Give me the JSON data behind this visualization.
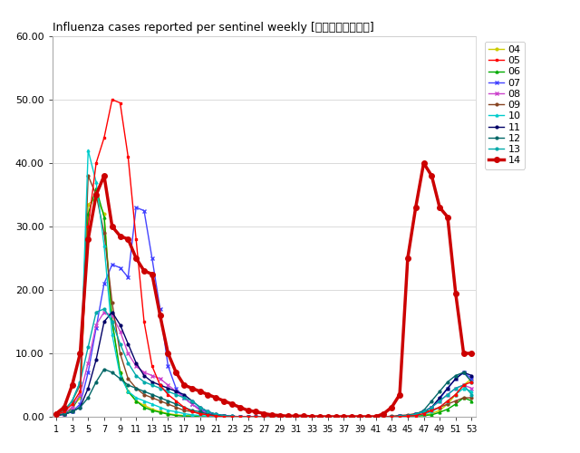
{
  "title": "Influenza cases reported per sentinel weekly [定点当たり報告数]",
  "ylim": [
    0,
    60
  ],
  "yticks": [
    0.0,
    10.0,
    20.0,
    30.0,
    40.0,
    50.0,
    60.0
  ],
  "xlim": [
    1,
    53
  ],
  "xticks": [
    1,
    3,
    5,
    7,
    9,
    11,
    13,
    15,
    17,
    19,
    21,
    23,
    25,
    27,
    29,
    31,
    33,
    35,
    37,
    39,
    41,
    43,
    45,
    47,
    49,
    51,
    53
  ],
  "background_color": "#ffffff",
  "series": {
    "04": {
      "color": "#cccc00",
      "marker": "o",
      "markersize": 2,
      "linewidth": 1.0,
      "zorder": 2,
      "data": [
        0.3,
        0.5,
        1.5,
        3.0,
        33.5,
        34.5,
        32.0,
        15.0,
        7.0,
        4.0,
        2.5,
        1.8,
        1.2,
        0.8,
        0.5,
        0.3,
        0.2,
        0.1,
        0.1,
        0.0,
        0.0,
        0.0,
        0.0,
        0.0,
        0.0,
        0.0,
        0.0,
        0.0,
        0.0,
        0.0,
        0.0,
        0.0,
        0.0,
        0.0,
        0.0,
        0.0,
        0.0,
        0.0,
        0.0,
        0.0,
        0.0,
        0.0,
        0.0,
        0.0,
        0.0,
        0.1,
        0.2,
        0.5,
        1.0,
        2.0,
        3.5,
        5.0,
        6.0
      ]
    },
    "05": {
      "color": "#ff0000",
      "marker": "s",
      "markersize": 2,
      "linewidth": 1.0,
      "zorder": 3,
      "data": [
        0.3,
        0.8,
        2.0,
        4.0,
        30.0,
        40.0,
        44.0,
        50.0,
        49.5,
        41.0,
        28.0,
        15.0,
        8.0,
        5.0,
        3.5,
        2.5,
        1.5,
        0.8,
        0.5,
        0.3,
        0.1,
        0.0,
        0.0,
        0.0,
        0.0,
        0.0,
        0.0,
        0.0,
        0.0,
        0.0,
        0.0,
        0.0,
        0.0,
        0.0,
        0.0,
        0.0,
        0.0,
        0.0,
        0.0,
        0.0,
        0.0,
        0.0,
        0.0,
        0.0,
        0.1,
        0.2,
        0.5,
        1.0,
        1.5,
        2.5,
        3.5,
        5.0,
        5.5
      ]
    },
    "06": {
      "color": "#00aa00",
      "marker": "^",
      "markersize": 2,
      "linewidth": 1.0,
      "zorder": 2,
      "data": [
        0.2,
        0.5,
        1.2,
        3.5,
        32.0,
        36.0,
        31.5,
        15.0,
        7.0,
        4.0,
        2.5,
        1.5,
        1.0,
        0.7,
        0.4,
        0.2,
        0.1,
        0.1,
        0.0,
        0.0,
        0.0,
        0.0,
        0.0,
        0.0,
        0.0,
        0.0,
        0.0,
        0.0,
        0.0,
        0.0,
        0.0,
        0.0,
        0.0,
        0.0,
        0.0,
        0.0,
        0.0,
        0.0,
        0.0,
        0.0,
        0.0,
        0.0,
        0.0,
        0.0,
        0.0,
        0.1,
        0.2,
        0.3,
        0.7,
        1.2,
        2.0,
        3.0,
        2.5
      ]
    },
    "07": {
      "color": "#4444ff",
      "marker": "x",
      "markersize": 3,
      "linewidth": 1.0,
      "zorder": 2,
      "data": [
        0.2,
        0.4,
        0.8,
        2.0,
        7.0,
        14.0,
        21.0,
        24.0,
        23.5,
        22.0,
        33.0,
        32.5,
        25.0,
        17.0,
        8.0,
        4.5,
        3.0,
        2.0,
        1.2,
        0.6,
        0.3,
        0.1,
        0.0,
        0.0,
        0.0,
        0.0,
        0.0,
        0.0,
        0.0,
        0.0,
        0.0,
        0.0,
        0.0,
        0.0,
        0.0,
        0.0,
        0.0,
        0.0,
        0.0,
        0.0,
        0.0,
        0.0,
        0.0,
        0.1,
        0.2,
        0.4,
        0.8,
        1.5,
        2.8,
        4.5,
        6.0,
        7.0,
        6.0
      ]
    },
    "08": {
      "color": "#cc44cc",
      "marker": "x",
      "markersize": 3,
      "linewidth": 1.0,
      "zorder": 2,
      "data": [
        0.2,
        0.5,
        1.5,
        3.5,
        8.5,
        14.5,
        16.5,
        16.0,
        13.5,
        10.0,
        8.0,
        7.0,
        6.5,
        6.0,
        5.0,
        4.0,
        3.0,
        2.0,
        1.0,
        0.5,
        0.2,
        0.1,
        0.0,
        0.0,
        0.0,
        0.0,
        0.0,
        0.0,
        0.0,
        0.0,
        0.0,
        0.0,
        0.0,
        0.0,
        0.0,
        0.0,
        0.0,
        0.0,
        0.0,
        0.0,
        0.0,
        0.0,
        0.0,
        0.1,
        0.2,
        0.4,
        0.8,
        1.5,
        2.5,
        3.5,
        4.5,
        5.0,
        4.5
      ]
    },
    "09": {
      "color": "#884422",
      "marker": "o",
      "markersize": 2,
      "linewidth": 1.0,
      "zorder": 2,
      "data": [
        0.5,
        1.0,
        2.5,
        5.0,
        38.0,
        35.0,
        29.0,
        18.0,
        10.0,
        6.0,
        4.5,
        3.5,
        3.0,
        2.5,
        2.0,
        1.5,
        1.0,
        0.8,
        0.5,
        0.3,
        0.2,
        0.1,
        0.0,
        0.0,
        0.0,
        0.0,
        0.0,
        0.0,
        0.0,
        0.0,
        0.0,
        0.0,
        0.0,
        0.0,
        0.0,
        0.0,
        0.0,
        0.0,
        0.0,
        0.0,
        0.0,
        0.0,
        0.1,
        0.2,
        0.3,
        0.5,
        0.8,
        1.0,
        1.5,
        2.0,
        2.5,
        3.0,
        3.0
      ]
    },
    "10": {
      "color": "#00cccc",
      "marker": "^",
      "markersize": 2,
      "linewidth": 1.0,
      "zorder": 2,
      "data": [
        0.3,
        0.8,
        2.5,
        5.5,
        42.0,
        37.0,
        27.0,
        13.0,
        6.5,
        4.0,
        3.0,
        2.5,
        2.0,
        1.5,
        1.0,
        0.8,
        0.5,
        0.3,
        0.2,
        0.1,
        0.0,
        0.0,
        0.0,
        0.0,
        0.0,
        0.0,
        0.0,
        0.0,
        0.0,
        0.0,
        0.0,
        0.0,
        0.0,
        0.0,
        0.0,
        0.0,
        0.0,
        0.0,
        0.0,
        0.0,
        0.0,
        0.0,
        0.0,
        0.0,
        0.1,
        0.2,
        0.4,
        0.8,
        1.5,
        2.5,
        3.5,
        4.5,
        4.0
      ]
    },
    "11": {
      "color": "#000066",
      "marker": "o",
      "markersize": 2,
      "linewidth": 1.0,
      "zorder": 2,
      "data": [
        0.2,
        0.4,
        0.8,
        1.5,
        4.5,
        9.0,
        15.0,
        16.5,
        14.5,
        11.5,
        8.5,
        6.5,
        5.5,
        5.0,
        4.5,
        4.0,
        3.5,
        2.5,
        1.5,
        0.8,
        0.4,
        0.2,
        0.1,
        0.0,
        0.0,
        0.0,
        0.0,
        0.0,
        0.0,
        0.0,
        0.0,
        0.0,
        0.0,
        0.0,
        0.0,
        0.0,
        0.0,
        0.0,
        0.0,
        0.0,
        0.0,
        0.0,
        0.0,
        0.1,
        0.2,
        0.4,
        0.8,
        1.5,
        3.0,
        4.5,
        6.0,
        7.0,
        6.5
      ]
    },
    "12": {
      "color": "#006666",
      "marker": "o",
      "markersize": 2,
      "linewidth": 1.0,
      "zorder": 2,
      "data": [
        0.2,
        0.4,
        0.8,
        1.5,
        3.0,
        5.5,
        7.5,
        7.0,
        6.0,
        5.0,
        4.5,
        4.0,
        3.5,
        3.0,
        2.5,
        2.0,
        1.5,
        1.0,
        0.8,
        0.4,
        0.2,
        0.1,
        0.0,
        0.0,
        0.0,
        0.0,
        0.0,
        0.0,
        0.0,
        0.0,
        0.0,
        0.0,
        0.0,
        0.0,
        0.0,
        0.0,
        0.0,
        0.0,
        0.0,
        0.0,
        0.0,
        0.0,
        0.0,
        0.1,
        0.2,
        0.4,
        1.0,
        2.5,
        4.0,
        5.5,
        6.5,
        7.0,
        5.5
      ]
    },
    "13": {
      "color": "#00aaaa",
      "marker": "o",
      "markersize": 2,
      "linewidth": 1.0,
      "zorder": 2,
      "data": [
        0.3,
        0.8,
        2.5,
        5.5,
        11.0,
        16.5,
        17.0,
        15.0,
        11.5,
        8.5,
        6.5,
        5.5,
        5.0,
        4.5,
        4.0,
        3.5,
        3.0,
        2.5,
        1.5,
        0.8,
        0.4,
        0.2,
        0.1,
        0.0,
        0.0,
        0.0,
        0.0,
        0.0,
        0.0,
        0.0,
        0.0,
        0.0,
        0.0,
        0.0,
        0.0,
        0.0,
        0.0,
        0.0,
        0.0,
        0.0,
        0.0,
        0.0,
        0.0,
        0.1,
        0.2,
        0.4,
        0.8,
        1.5,
        2.5,
        3.5,
        4.5,
        5.0,
        3.5
      ]
    },
    "14": {
      "color": "#cc0000",
      "marker": "o",
      "markersize": 4,
      "linewidth": 2.5,
      "zorder": 10,
      "data": [
        0.5,
        1.5,
        5.0,
        10.0,
        28.0,
        35.0,
        38.0,
        30.0,
        28.5,
        28.0,
        25.0,
        23.0,
        22.5,
        16.0,
        10.0,
        7.0,
        5.0,
        4.5,
        4.0,
        3.5,
        3.0,
        2.5,
        2.0,
        1.5,
        1.0,
        0.8,
        0.5,
        0.3,
        0.2,
        0.1,
        0.1,
        0.1,
        0.0,
        0.0,
        0.0,
        0.0,
        0.0,
        0.0,
        0.0,
        0.0,
        0.0,
        0.5,
        1.5,
        3.5,
        25.0,
        33.0,
        40.0,
        38.0,
        33.0,
        31.5,
        19.5,
        10.0,
        10.0
      ]
    }
  }
}
